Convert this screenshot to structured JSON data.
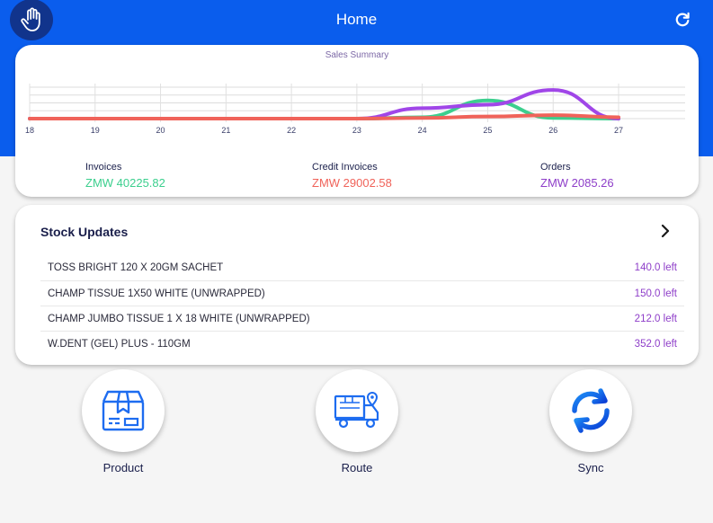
{
  "app": {
    "title": "Home"
  },
  "topbar": {
    "left_icon": "hand-icon",
    "right_icon": "refresh-icon"
  },
  "colors": {
    "primary": "#0a5ded",
    "hand_button": "#11348c",
    "invoices": "#3ccf8e",
    "credit_invoices": "#f0635a",
    "orders": "#8e3ec9"
  },
  "sales_summary": {
    "title": "Sales Summary",
    "chart_data": {
      "type": "line",
      "x": [
        "18",
        "19",
        "20",
        "21",
        "22",
        "23",
        "24",
        "25",
        "26",
        "27"
      ],
      "series": [
        {
          "color": "#3ccf8e",
          "values": [
            0,
            0,
            0,
            0,
            0,
            0,
            0.2,
            2.6,
            0.1,
            0
          ]
        },
        {
          "color": "#a046e8",
          "values": [
            0,
            0,
            0,
            0,
            0,
            0,
            1.5,
            2.0,
            4.1,
            0
          ]
        },
        {
          "color": "#f0635a",
          "values": [
            0,
            0,
            0,
            0,
            0,
            0,
            0.1,
            0.3,
            0.5,
            0.2
          ]
        }
      ],
      "grid": true,
      "gridlines": 5
    },
    "totals": [
      {
        "label": "Invoices",
        "value": "ZMW 40225.82",
        "color": "#3ccf8e"
      },
      {
        "label": "Credit Invoices",
        "value": "ZMW 29002.58",
        "color": "#f0635a"
      },
      {
        "label": "Orders",
        "value": "ZMW 2085.26",
        "color": "#8e3ec9"
      }
    ]
  },
  "stock_updates": {
    "title": "Stock Updates",
    "items": [
      {
        "name": "TOSS BRIGHT 120 X 20GM SACHET",
        "qty": "140.0 left"
      },
      {
        "name": "CHAMP TISSUE 1X50 WHITE (UNWRAPPED)",
        "qty": "150.0 left"
      },
      {
        "name": "CHAMP JUMBO TISSUE 1 X 18 WHITE (UNWRAPPED)",
        "qty": "212.0 left"
      },
      {
        "name": "W.DENT (GEL) PLUS - 110GM",
        "qty": "352.0 left"
      }
    ]
  },
  "actions": [
    {
      "label": "Product",
      "icon": "package-icon"
    },
    {
      "label": "Route",
      "icon": "delivery-truck-icon"
    },
    {
      "label": "Sync",
      "icon": "sync-icon"
    }
  ]
}
